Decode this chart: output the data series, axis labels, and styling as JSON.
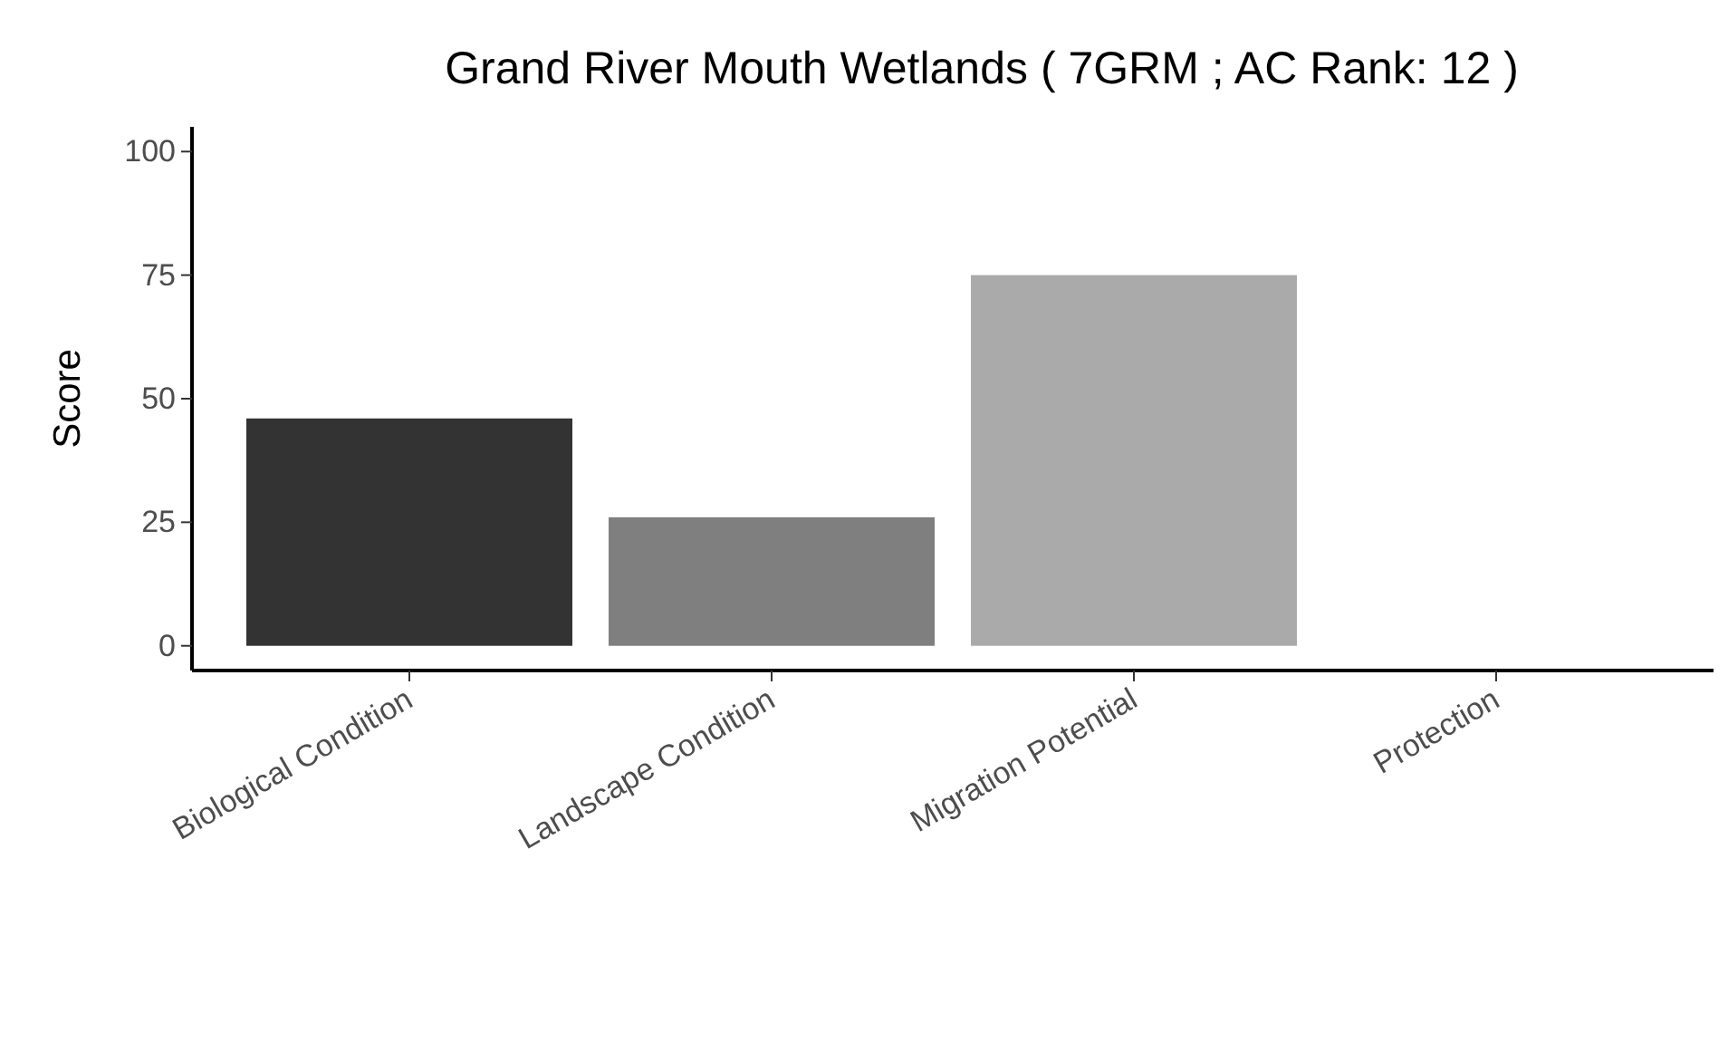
{
  "chart_data": {
    "type": "bar",
    "title": "Grand River Mouth Wetlands ( 7GRM ; AC Rank: 12 )",
    "ylabel": "Score",
    "categories": [
      "Biological Condition",
      "Landscape Condition",
      "Migration Potential",
      "Protection"
    ],
    "values": [
      46,
      26,
      75,
      0
    ],
    "colors": [
      "#333333",
      "#7f7f7f",
      "#aaaaaa",
      "#d4d4d4"
    ],
    "ylim": [
      -5,
      105
    ],
    "yticks": [
      0,
      25,
      50,
      75,
      100
    ],
    "grid": false
  }
}
